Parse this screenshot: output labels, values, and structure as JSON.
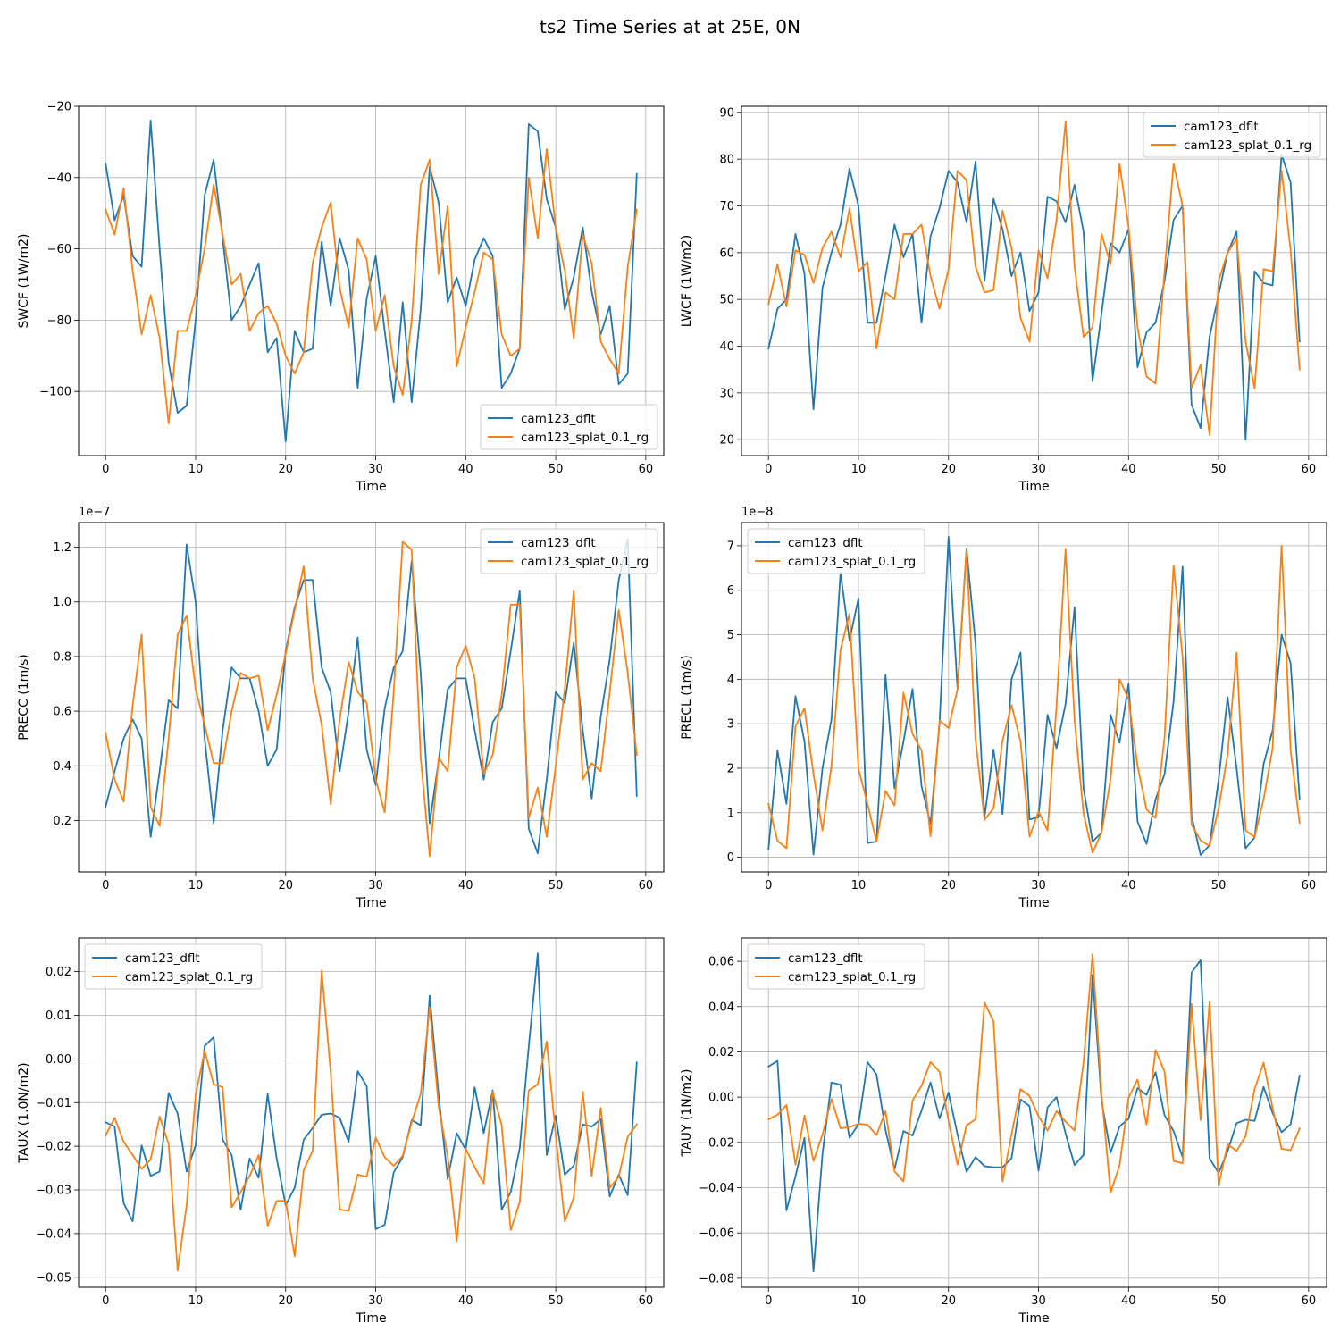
{
  "figure": {
    "title": "ts2 Time Series at at 25E, 0N",
    "colors": {
      "cam123_dflt": "#1f77b4",
      "cam123_splat_0.1_rg": "#ff7f0e"
    }
  },
  "chart_data": [
    {
      "type": "line",
      "id": "swcf",
      "title": "",
      "xlabel": "Time",
      "ylabel": "SWCF (1W/m2)",
      "offset_text": "",
      "xlim": [
        -3,
        62
      ],
      "ylim": [
        -118,
        -20
      ],
      "xticks": [
        0,
        10,
        20,
        30,
        40,
        50,
        60
      ],
      "xtick_labels": [
        "0",
        "10",
        "20",
        "30",
        "40",
        "50",
        "60"
      ],
      "yticks": [
        -100,
        -80,
        -60,
        -40,
        -20
      ],
      "ytick_labels": [
        "−100",
        "−80",
        "−60",
        "−40",
        "−20"
      ],
      "legend": "lower right",
      "grid": true,
      "series": [
        {
          "name": "cam123_dflt",
          "color": "#1f77b4",
          "values": [
            -36,
            -52,
            -45,
            -62,
            -65,
            -24,
            -60,
            -92,
            -106,
            -104,
            -80,
            -45,
            -35,
            -57,
            -80,
            -76,
            -70,
            -64,
            -89,
            -85,
            -114,
            -83,
            -89,
            -88,
            -58,
            -76,
            -57,
            -66,
            -99,
            -74,
            -62,
            -83,
            -103,
            -75,
            -103,
            -77,
            -37,
            -47,
            -75,
            -68,
            -76,
            -63,
            -57,
            -62,
            -99,
            -95,
            -88,
            -25,
            -27,
            -46,
            -54,
            -77,
            -68,
            -54,
            -72,
            -84,
            -76,
            -98,
            -95,
            -39
          ]
        },
        {
          "name": "cam123_splat_0.1_rg",
          "color": "#ff7f0e",
          "values": [
            -49,
            -56,
            -43,
            -66,
            -84,
            -73,
            -85,
            -109,
            -83,
            -83,
            -73,
            -60,
            -42,
            -56,
            -70,
            -67,
            -83,
            -78,
            -76,
            -81,
            -90,
            -95,
            -89,
            -64,
            -54,
            -47,
            -71,
            -82,
            -57,
            -63,
            -83,
            -73,
            -93,
            -101,
            -80,
            -42,
            -35,
            -67,
            -48,
            -93,
            -82,
            -72,
            -61,
            -63,
            -84,
            -90,
            -88,
            -40,
            -57,
            -32,
            -54,
            -66,
            -85,
            -56,
            -64,
            -86,
            -91,
            -95,
            -65,
            -49
          ]
        }
      ]
    },
    {
      "type": "line",
      "id": "lwcf",
      "title": "",
      "xlabel": "Time",
      "ylabel": "LWCF (1W/m2)",
      "offset_text": "",
      "xlim": [
        -3,
        62
      ],
      "ylim": [
        16.6,
        91.3
      ],
      "xticks": [
        0,
        10,
        20,
        30,
        40,
        50,
        60
      ],
      "xtick_labels": [
        "0",
        "10",
        "20",
        "30",
        "40",
        "50",
        "60"
      ],
      "yticks": [
        20,
        30,
        40,
        50,
        60,
        70,
        80,
        90
      ],
      "ytick_labels": [
        "20",
        "30",
        "40",
        "50",
        "60",
        "70",
        "80",
        "90"
      ],
      "legend": "upper right",
      "grid": true,
      "series": [
        {
          "name": "cam123_dflt",
          "color": "#1f77b4",
          "values": [
            39.5,
            48,
            50,
            64,
            55.5,
            26.5,
            52.5,
            60,
            66,
            78,
            70,
            45,
            45,
            55,
            66,
            59,
            64,
            45,
            63.5,
            69.5,
            77.5,
            75,
            66.5,
            79.5,
            54,
            71.5,
            65,
            55,
            60,
            47.5,
            51.5,
            72,
            71,
            66.5,
            74.5,
            64.5,
            32.5,
            47,
            62,
            60,
            65,
            35.5,
            43,
            45,
            54,
            67,
            70,
            27.5,
            22.5,
            42,
            51,
            60,
            64.5,
            20,
            56,
            53.5,
            53,
            81,
            75,
            41
          ]
        },
        {
          "name": "cam123_splat_0.1_rg",
          "color": "#ff7f0e",
          "values": [
            49,
            57.5,
            48.5,
            60.5,
            59.5,
            53.5,
            61,
            64.5,
            59,
            69.5,
            56,
            58,
            39.5,
            51.5,
            50,
            64,
            64,
            66,
            55,
            48,
            56.5,
            77.5,
            75.5,
            57,
            51.5,
            52,
            69,
            61,
            46,
            41,
            60.5,
            54.5,
            67,
            88,
            57,
            42,
            44,
            64,
            57.5,
            79,
            65.5,
            44,
            33.5,
            32,
            56,
            79,
            70,
            31,
            36,
            21,
            54,
            60,
            63,
            41,
            31,
            56.5,
            56,
            77.5,
            60.5,
            35
          ]
        }
      ]
    },
    {
      "type": "line",
      "id": "precc",
      "title": "",
      "xlabel": "Time",
      "ylabel": "PRECC (1m/s)",
      "offset_text": "1e−7",
      "xlim": [
        -3,
        62
      ],
      "ylim": [
        0.012,
        1.29
      ],
      "xticks": [
        0,
        10,
        20,
        30,
        40,
        50,
        60
      ],
      "xtick_labels": [
        "0",
        "10",
        "20",
        "30",
        "40",
        "50",
        "60"
      ],
      "yticks": [
        0.2,
        0.4,
        0.6,
        0.8,
        1.0,
        1.2
      ],
      "ytick_labels": [
        "0.2",
        "0.4",
        "0.6",
        "0.8",
        "1.0",
        "1.2"
      ],
      "legend": "upper right",
      "grid": true,
      "series": [
        {
          "name": "cam123_dflt",
          "color": "#1f77b4",
          "values": [
            0.25,
            0.38,
            0.5,
            0.57,
            0.5,
            0.14,
            0.38,
            0.64,
            0.61,
            1.21,
            1.0,
            0.5,
            0.19,
            0.53,
            0.76,
            0.72,
            0.72,
            0.6,
            0.4,
            0.46,
            0.82,
            0.98,
            1.08,
            1.08,
            0.76,
            0.67,
            0.38,
            0.6,
            0.87,
            0.46,
            0.33,
            0.61,
            0.76,
            0.82,
            1.15,
            0.74,
            0.19,
            0.42,
            0.68,
            0.72,
            0.72,
            0.53,
            0.35,
            0.56,
            0.61,
            0.82,
            1.04,
            0.17,
            0.08,
            0.35,
            0.67,
            0.63,
            0.85,
            0.53,
            0.28,
            0.58,
            0.79,
            1.08,
            1.23,
            0.29
          ]
        },
        {
          "name": "cam123_splat_0.1_rg",
          "color": "#ff7f0e",
          "values": [
            0.52,
            0.35,
            0.27,
            0.62,
            0.88,
            0.25,
            0.18,
            0.5,
            0.88,
            0.95,
            0.68,
            0.55,
            0.41,
            0.41,
            0.6,
            0.74,
            0.72,
            0.73,
            0.53,
            0.66,
            0.81,
            0.97,
            1.13,
            0.72,
            0.55,
            0.26,
            0.57,
            0.78,
            0.67,
            0.63,
            0.35,
            0.23,
            0.67,
            1.22,
            1.19,
            0.43,
            0.07,
            0.43,
            0.38,
            0.76,
            0.84,
            0.72,
            0.37,
            0.44,
            0.66,
            0.99,
            0.99,
            0.21,
            0.32,
            0.14,
            0.4,
            0.68,
            1.04,
            0.35,
            0.41,
            0.38,
            0.67,
            0.97,
            0.74,
            0.44
          ]
        }
      ]
    },
    {
      "type": "line",
      "id": "precl",
      "title": "",
      "xlabel": "Time",
      "ylabel": "PRECL (1m/s)",
      "offset_text": "1e−8",
      "xlim": [
        -3,
        62
      ],
      "ylim": [
        -0.33,
        7.52
      ],
      "xticks": [
        0,
        10,
        20,
        30,
        40,
        50,
        60
      ],
      "xtick_labels": [
        "0",
        "10",
        "20",
        "30",
        "40",
        "50",
        "60"
      ],
      "yticks": [
        0,
        1,
        2,
        3,
        4,
        5,
        6,
        7
      ],
      "ytick_labels": [
        "0",
        "1",
        "2",
        "3",
        "4",
        "5",
        "6",
        "7"
      ],
      "legend": "upper left",
      "grid": true,
      "series": [
        {
          "name": "cam123_dflt",
          "color": "#1f77b4",
          "values": [
            0.18,
            2.4,
            1.2,
            3.62,
            2.6,
            0.06,
            2.0,
            3.1,
            6.4,
            4.87,
            5.82,
            0.32,
            0.35,
            4.1,
            1.55,
            2.6,
            3.78,
            1.6,
            0.75,
            3.0,
            7.2,
            3.77,
            6.94,
            4.8,
            0.9,
            2.42,
            0.97,
            4.0,
            4.6,
            0.85,
            0.9,
            3.2,
            2.45,
            3.44,
            5.62,
            1.55,
            0.35,
            0.55,
            3.2,
            2.57,
            3.9,
            0.8,
            0.3,
            1.3,
            1.87,
            3.5,
            6.53,
            0.93,
            0.05,
            0.27,
            1.73,
            3.6,
            2.0,
            0.2,
            0.44,
            2.09,
            2.85,
            5.0,
            4.36,
            1.3
          ]
        },
        {
          "name": "cam123_splat_0.1_rg",
          "color": "#ff7f0e",
          "values": [
            1.2,
            0.37,
            0.2,
            2.94,
            3.35,
            1.87,
            0.6,
            2.06,
            4.66,
            5.47,
            1.98,
            1.2,
            0.35,
            1.49,
            1.16,
            3.7,
            2.77,
            2.4,
            0.47,
            3.07,
            2.9,
            3.78,
            6.9,
            2.65,
            0.84,
            1.1,
            2.62,
            3.42,
            2.6,
            0.46,
            1.03,
            0.6,
            3.4,
            6.93,
            3.08,
            0.98,
            0.1,
            0.55,
            1.75,
            4.0,
            3.55,
            2.05,
            1.07,
            0.88,
            2.7,
            6.56,
            4.5,
            0.73,
            0.38,
            0.25,
            1.1,
            2.3,
            4.6,
            0.6,
            0.45,
            1.3,
            2.45,
            7.0,
            2.4,
            0.77
          ]
        }
      ]
    },
    {
      "type": "line",
      "id": "taux",
      "title": "",
      "xlabel": "Time",
      "ylabel": "TAUX (1.0N/m2)",
      "offset_text": "",
      "xlim": [
        -3,
        62
      ],
      "ylim": [
        -0.0523,
        0.0277
      ],
      "xticks": [
        0,
        10,
        20,
        30,
        40,
        50,
        60
      ],
      "xtick_labels": [
        "0",
        "10",
        "20",
        "30",
        "40",
        "50",
        "60"
      ],
      "yticks": [
        -0.05,
        -0.04,
        -0.03,
        -0.02,
        -0.01,
        0.0,
        0.01,
        0.02
      ],
      "ytick_labels": [
        "−0.05",
        "−0.04",
        "−0.03",
        "−0.02",
        "−0.01",
        "0.00",
        "0.01",
        "0.02"
      ],
      "legend": "upper left",
      "grid": true,
      "series": [
        {
          "name": "cam123_dflt",
          "color": "#1f77b4",
          "values": [
            -0.0145,
            -0.0155,
            -0.033,
            -0.0372,
            -0.0198,
            -0.0268,
            -0.0258,
            -0.0078,
            -0.0125,
            -0.0258,
            -0.0198,
            0.003,
            0.005,
            -0.0185,
            -0.022,
            -0.0345,
            -0.0228,
            -0.0272,
            -0.008,
            -0.0228,
            -0.0335,
            -0.0295,
            -0.0185,
            -0.0158,
            -0.0128,
            -0.0125,
            -0.0135,
            -0.019,
            -0.0028,
            -0.0062,
            -0.039,
            -0.038,
            -0.026,
            -0.0225,
            -0.014,
            -0.0152,
            0.0145,
            -0.0085,
            -0.0275,
            -0.017,
            -0.0208,
            -0.0065,
            -0.017,
            -0.0072,
            -0.0345,
            -0.0305,
            -0.0205,
            0.0028,
            0.0242,
            -0.022,
            -0.013,
            -0.0265,
            -0.0245,
            -0.015,
            -0.0155,
            -0.0138,
            -0.0315,
            -0.0265,
            -0.0312,
            -0.0008
          ]
        },
        {
          "name": "cam123_splat_0.1_rg",
          "color": "#ff7f0e",
          "values": [
            -0.0175,
            -0.0135,
            -0.019,
            -0.022,
            -0.0252,
            -0.023,
            -0.0132,
            -0.0195,
            -0.0485,
            -0.0335,
            -0.0082,
            0.0018,
            -0.0058,
            -0.0065,
            -0.034,
            -0.0305,
            -0.0268,
            -0.022,
            -0.0382,
            -0.0325,
            -0.0325,
            -0.0452,
            -0.0255,
            -0.021,
            0.0202,
            -0.003,
            -0.0345,
            -0.0348,
            -0.0265,
            -0.027,
            -0.018,
            -0.0225,
            -0.0245,
            -0.0222,
            -0.0145,
            -0.008,
            0.0118,
            -0.011,
            -0.0222,
            -0.0418,
            -0.0205,
            -0.0248,
            -0.0285,
            -0.0075,
            -0.0152,
            -0.0392,
            -0.0328,
            -0.0072,
            -0.0058,
            0.004,
            -0.0175,
            -0.0372,
            -0.0318,
            -0.0075,
            -0.0268,
            -0.0112,
            -0.0295,
            -0.027,
            -0.0178,
            -0.015
          ]
        }
      ]
    },
    {
      "type": "line",
      "id": "tauy",
      "title": "",
      "xlabel": "Time",
      "ylabel": "TAUY (1N/m2)",
      "offset_text": "",
      "xlim": [
        -3,
        62
      ],
      "ylim": [
        -0.084,
        0.0703
      ],
      "xticks": [
        0,
        10,
        20,
        30,
        40,
        50,
        60
      ],
      "xtick_labels": [
        "0",
        "10",
        "20",
        "30",
        "40",
        "50",
        "60"
      ],
      "yticks": [
        -0.08,
        -0.06,
        -0.04,
        -0.02,
        0.0,
        0.02,
        0.04,
        0.06
      ],
      "ytick_labels": [
        "−0.08",
        "−0.06",
        "−0.04",
        "−0.02",
        "0.00",
        "0.02",
        "0.04",
        "0.06"
      ],
      "legend": "upper left",
      "grid": true,
      "series": [
        {
          "name": "cam123_dflt",
          "color": "#1f77b4",
          "values": [
            0.0135,
            0.016,
            -0.05,
            -0.035,
            -0.018,
            -0.077,
            -0.025,
            0.0065,
            0.0055,
            -0.018,
            -0.012,
            0.0155,
            0.01,
            -0.0145,
            -0.032,
            -0.015,
            -0.017,
            -0.006,
            0.0065,
            -0.0095,
            0.002,
            -0.0165,
            -0.033,
            -0.0265,
            -0.0305,
            -0.031,
            -0.031,
            -0.027,
            -0.001,
            -0.004,
            -0.0325,
            -0.0045,
            0.0,
            -0.016,
            -0.03,
            -0.0255,
            0.054,
            -0.0015,
            -0.0245,
            -0.013,
            -0.0095,
            0.004,
            0.001,
            0.011,
            -0.008,
            -0.015,
            -0.0265,
            0.055,
            0.0605,
            -0.027,
            -0.0335,
            -0.024,
            -0.0115,
            -0.01,
            -0.0105,
            0.0045,
            -0.007,
            -0.0155,
            -0.012,
            0.0095
          ]
        },
        {
          "name": "cam123_splat_0.1_rg",
          "color": "#ff7f0e",
          "values": [
            -0.0098,
            -0.0078,
            -0.0035,
            -0.0298,
            -0.0082,
            -0.0282,
            -0.0165,
            -0.0008,
            -0.0138,
            -0.0132,
            -0.0118,
            -0.0122,
            -0.0168,
            -0.0062,
            -0.0328,
            -0.0372,
            -0.0015,
            0.005,
            0.0155,
            0.0112,
            -0.0105,
            -0.0298,
            -0.0125,
            -0.0098,
            0.0418,
            0.0335,
            -0.0372,
            -0.0165,
            0.0035,
            0.0005,
            -0.0085,
            -0.0148,
            -0.0062,
            -0.0108,
            -0.0148,
            0.0155,
            0.0632,
            0.0015,
            -0.0422,
            -0.0302,
            -0.0002,
            0.0078,
            -0.0122,
            0.0208,
            0.0112,
            -0.0282,
            -0.0292,
            0.0412,
            -0.0102,
            0.0422,
            -0.0392,
            -0.0208,
            -0.0238,
            -0.0172,
            0.0035,
            0.0152,
            -0.0048,
            -0.0228,
            -0.0235,
            -0.0138
          ]
        }
      ]
    }
  ]
}
